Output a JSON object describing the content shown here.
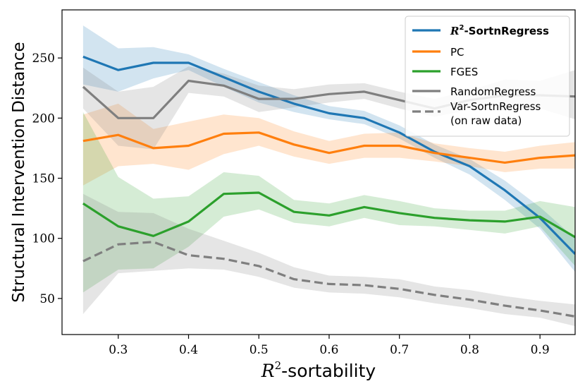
{
  "chart_data": {
    "type": "line",
    "title": "",
    "xlabel": "R²-sortability",
    "xlabel_prefix": "R",
    "xlabel_sup": "2",
    "xlabel_suffix": "-sortability",
    "ylabel": "Structural Intervention Distance",
    "xlim": [
      0.22,
      0.95
    ],
    "ylim": [
      20,
      290
    ],
    "xticks": [
      0.3,
      0.4,
      0.5,
      0.6,
      0.7,
      0.8,
      0.9
    ],
    "xtick_labels": [
      "0.3",
      "0.4",
      "0.5",
      "0.6",
      "0.7",
      "0.8",
      "0.9"
    ],
    "yticks": [
      50,
      100,
      150,
      200,
      250
    ],
    "ytick_labels": [
      "50",
      "100",
      "150",
      "200",
      "250"
    ],
    "grid": false,
    "legend_position": "top-right",
    "x": [
      0.25,
      0.3,
      0.35,
      0.4,
      0.45,
      0.5,
      0.55,
      0.6,
      0.65,
      0.7,
      0.75,
      0.8,
      0.85,
      0.9,
      0.95
    ],
    "series": [
      {
        "name": "R²-SortnRegress",
        "legend_prefix": "R",
        "legend_sup": "2",
        "legend_suffix": "-SortnRegress",
        "color": "#1f77b4",
        "style": "solid",
        "values": [
          251,
          240,
          246,
          246,
          234,
          222,
          212,
          204,
          200,
          188,
          172,
          160,
          140,
          117,
          87
        ],
        "lower": [
          228,
          222,
          233,
          240,
          226,
          213,
          205,
          199,
          195,
          183,
          167,
          153,
          132,
          108,
          72
        ],
        "upper": [
          277,
          258,
          259,
          253,
          241,
          230,
          219,
          210,
          206,
          194,
          178,
          166,
          148,
          126,
          100
        ]
      },
      {
        "name": "PC",
        "color": "#ff7f0e",
        "style": "solid",
        "values": [
          181,
          186,
          175,
          177,
          187,
          188,
          178,
          171,
          177,
          177,
          171,
          167,
          163,
          167,
          169
        ],
        "lower": [
          144,
          160,
          162,
          157,
          170,
          177,
          168,
          162,
          167,
          167,
          164,
          160,
          155,
          158,
          158
        ],
        "upper": [
          203,
          212,
          191,
          197,
          203,
          200,
          189,
          181,
          187,
          188,
          179,
          175,
          172,
          177,
          180
        ]
      },
      {
        "name": "FGES",
        "color": "#2ca02c",
        "style": "solid",
        "values": [
          129,
          110,
          102,
          114,
          137,
          138,
          122,
          119,
          126,
          121,
          117,
          115,
          114,
          118,
          101
        ],
        "lower": [
          55,
          74,
          75,
          93,
          118,
          124,
          113,
          110,
          117,
          111,
          110,
          107,
          104,
          110,
          77
        ],
        "upper": [
          205,
          151,
          133,
          135,
          155,
          152,
          132,
          129,
          136,
          131,
          125,
          123,
          123,
          131,
          126
        ]
      },
      {
        "name": "RandomRegress",
        "color": "#7f7f7f",
        "style": "solid",
        "values": [
          226,
          200,
          200,
          231,
          227,
          216,
          216,
          220,
          222,
          215,
          208,
          215,
          219,
          219,
          218
        ],
        "lower": [
          208,
          177,
          174,
          221,
          218,
          205,
          209,
          213,
          216,
          208,
          201,
          207,
          206,
          208,
          199
        ],
        "upper": [
          242,
          222,
          226,
          243,
          237,
          227,
          224,
          228,
          229,
          222,
          216,
          223,
          232,
          231,
          240
        ]
      },
      {
        "name": "Var-SortnRegress (on raw data)",
        "legend_line1": "Var-SortnRegress",
        "legend_line2": "(on raw data)",
        "color": "#7f7f7f",
        "style": "dashed",
        "values": [
          81,
          95,
          97,
          86,
          83,
          77,
          66,
          62,
          61,
          58,
          53,
          49,
          44,
          40,
          35
        ],
        "lower": [
          37,
          71,
          73,
          75,
          74,
          68,
          59,
          55,
          54,
          51,
          46,
          42,
          37,
          34,
          27
        ],
        "upper": [
          137,
          122,
          121,
          108,
          98,
          88,
          76,
          69,
          68,
          66,
          60,
          57,
          52,
          48,
          45
        ]
      }
    ]
  }
}
